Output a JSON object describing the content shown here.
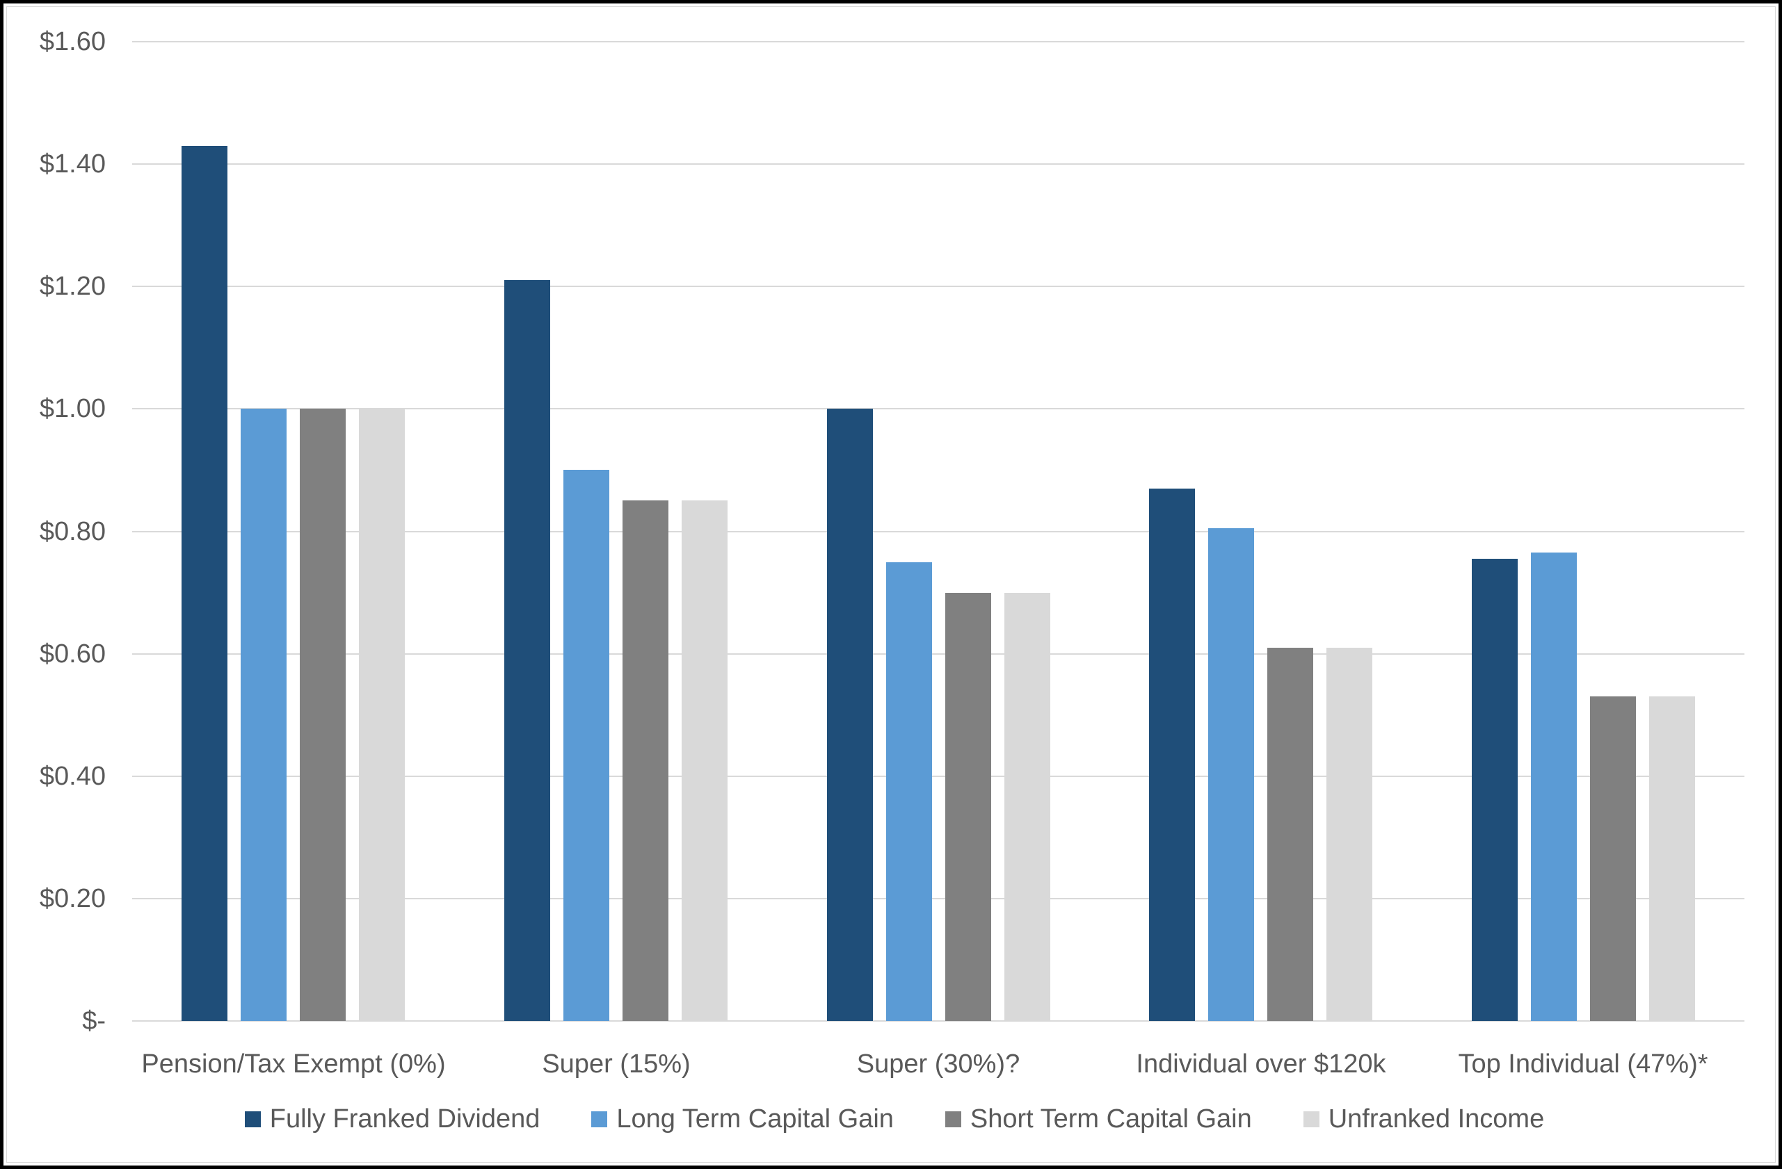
{
  "chart_data": {
    "type": "bar",
    "title": "",
    "categories": [
      "Pension/Tax Exempt (0%)",
      "Super (15%)",
      "Super (30%)?",
      "Individual over $120k",
      "Top Individual (47%)*"
    ],
    "series": [
      {
        "name": "Fully Franked Dividend",
        "color": "#1F4E79",
        "values": [
          1.43,
          1.21,
          1.0,
          0.87,
          0.755
        ]
      },
      {
        "name": "Long Term Capital Gain",
        "color": "#5B9BD5",
        "values": [
          1.0,
          0.9,
          0.75,
          0.805,
          0.765
        ]
      },
      {
        "name": "Short Term Capital Gain",
        "color": "#808080",
        "values": [
          1.0,
          0.85,
          0.7,
          0.61,
          0.53
        ]
      },
      {
        "name": "Unfranked Income",
        "color": "#D9D9D9",
        "values": [
          1.0,
          0.85,
          0.7,
          0.61,
          0.53
        ]
      }
    ],
    "ylim": [
      0,
      1.6
    ],
    "y_tick_step": 0.2,
    "y_tick_labels_top_to_bottom": [
      "$1.60",
      "$1.40",
      "$1.20",
      "$1.00",
      "$0.80",
      "$0.60",
      "$0.40",
      "$0.20",
      "$-"
    ],
    "xlabel": "",
    "ylabel": "",
    "grid": "horizontal",
    "legend_position": "bottom-center"
  },
  "style": {
    "background_color": "#FFFFFF",
    "frame_border_color": "#000000",
    "inner_border_color": "#D9D9D9",
    "gridline_color": "#D9D9D9",
    "axis_text_color": "#595959"
  }
}
